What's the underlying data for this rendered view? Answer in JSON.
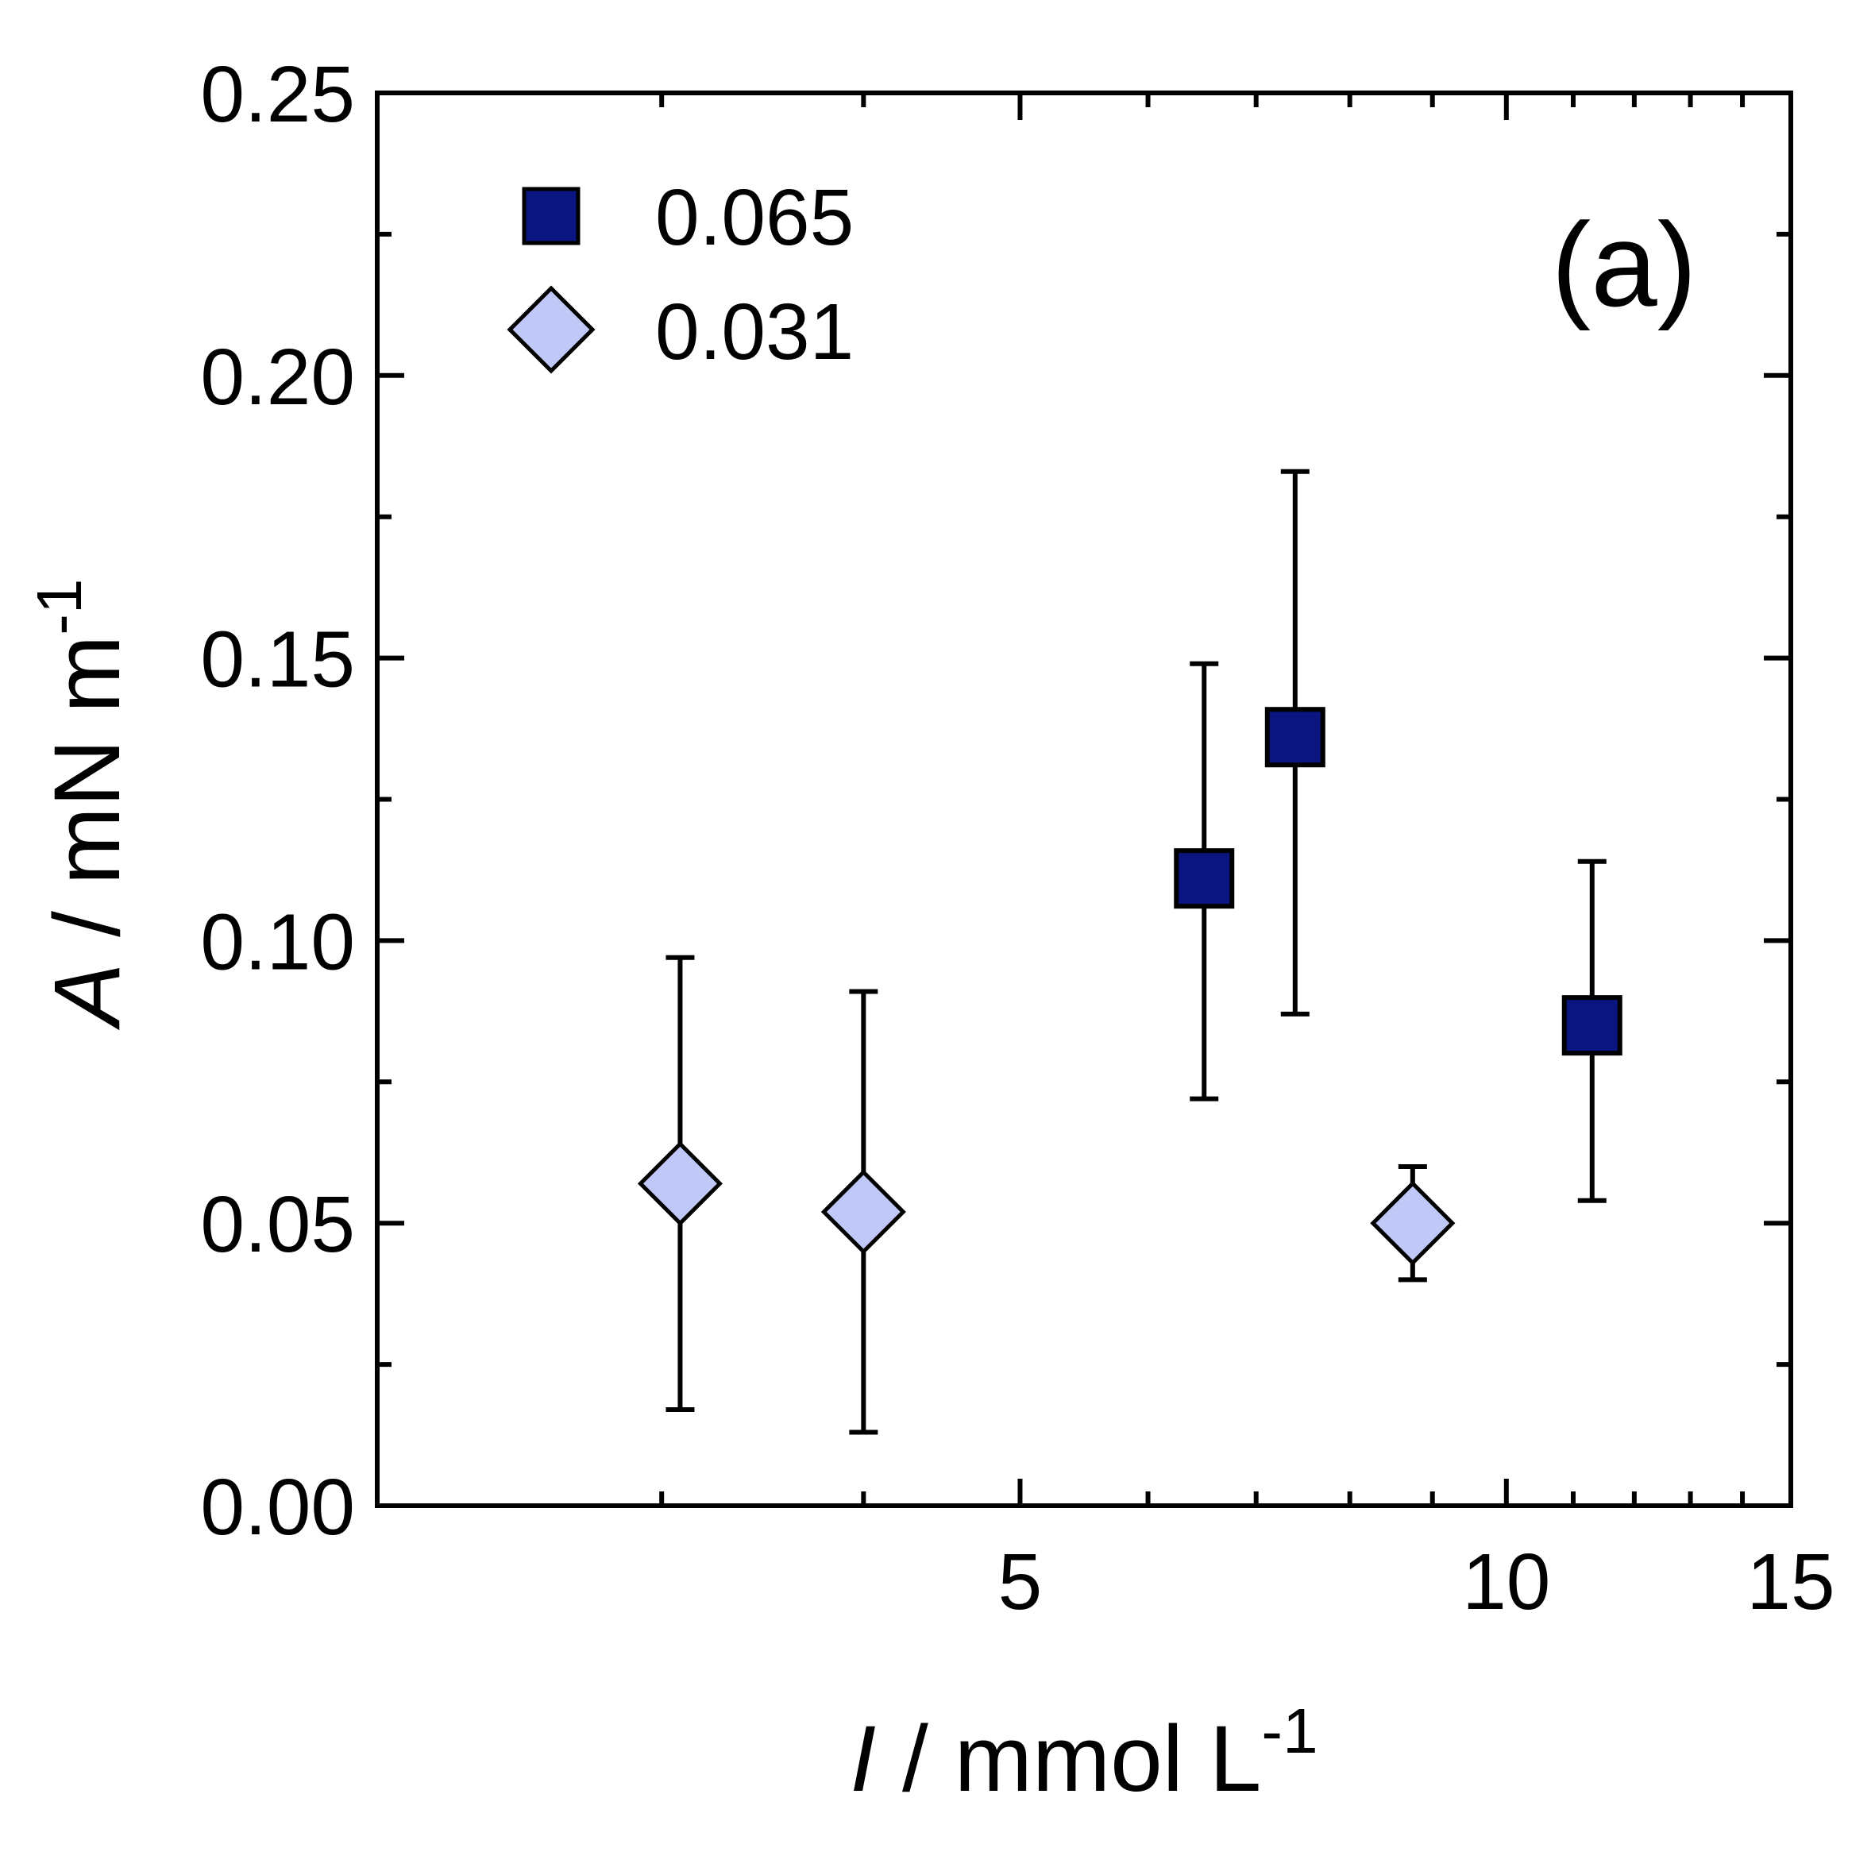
{
  "chart_data": {
    "type": "scatter",
    "panel_label": "(a)",
    "x_axis": {
      "title_var": "I",
      "title_unit": " / mmol L",
      "title_sup": "-1",
      "scale": "log",
      "range": [
        2.0,
        15.0
      ],
      "major_ticks": [
        5,
        10,
        15
      ],
      "tick_labels": [
        "5",
        "10",
        "15"
      ],
      "minor_ticks": [
        3,
        4,
        6,
        7,
        8,
        9,
        11,
        12,
        13,
        14
      ]
    },
    "y_axis": {
      "title_var": "A",
      "title_unit": " / mN m",
      "title_sup": "-1",
      "scale": "linear",
      "range": [
        0,
        0.25
      ],
      "major_ticks": [
        0,
        0.05,
        0.1,
        0.15,
        0.2,
        0.25
      ],
      "tick_labels": [
        "0.00",
        "0.05",
        "0.10",
        "0.15",
        "0.20",
        "0.25"
      ],
      "minor_ticks": [
        0.025,
        0.075,
        0.125,
        0.175,
        0.225
      ]
    },
    "legend": {
      "placement": "top-left"
    },
    "series": [
      {
        "name": "0.065",
        "marker": "square",
        "fill": "#0a1580",
        "stroke": "#000000",
        "points": [
          {
            "x": 6.5,
            "y": 0.111,
            "err_low": 0.072,
            "err_high": 0.149
          },
          {
            "x": 7.4,
            "y": 0.136,
            "err_low": 0.087,
            "err_high": 0.183
          },
          {
            "x": 11.3,
            "y": 0.085,
            "err_low": 0.054,
            "err_high": 0.114
          }
        ]
      },
      {
        "name": "0.031",
        "marker": "diamond",
        "fill": "#c0c8f8",
        "stroke": "#000000",
        "points": [
          {
            "x": 3.08,
            "y": 0.057,
            "err_low": 0.017,
            "err_high": 0.097
          },
          {
            "x": 4.0,
            "y": 0.052,
            "err_low": 0.013,
            "err_high": 0.091
          },
          {
            "x": 8.75,
            "y": 0.05,
            "err_low": 0.04,
            "err_high": 0.06
          }
        ]
      }
    ]
  }
}
